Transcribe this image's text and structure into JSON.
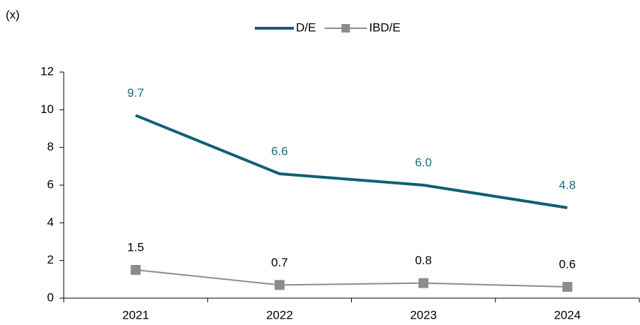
{
  "chart_data": {
    "type": "line",
    "y_label": "(x)",
    "categories": [
      "2021",
      "2022",
      "2023",
      "2024"
    ],
    "series": [
      {
        "name": "D/E",
        "color": "#0f5f75",
        "label_color": "#1d6b80",
        "marker": "none",
        "values": [
          9.7,
          6.6,
          6.0,
          4.8
        ],
        "value_labels": [
          "9.7",
          "6.6",
          "6.0",
          "4.8"
        ]
      },
      {
        "name": "IBD/E",
        "color": "#8c8c8c",
        "label_color": "#000000",
        "marker": "square",
        "values": [
          1.5,
          0.7,
          0.8,
          0.6
        ],
        "value_labels": [
          "1.5",
          "0.7",
          "0.8",
          "0.6"
        ]
      }
    ],
    "ylim": [
      0,
      12
    ],
    "yticks": [
      0,
      2,
      4,
      6,
      8,
      10,
      12
    ],
    "legend": "top"
  }
}
